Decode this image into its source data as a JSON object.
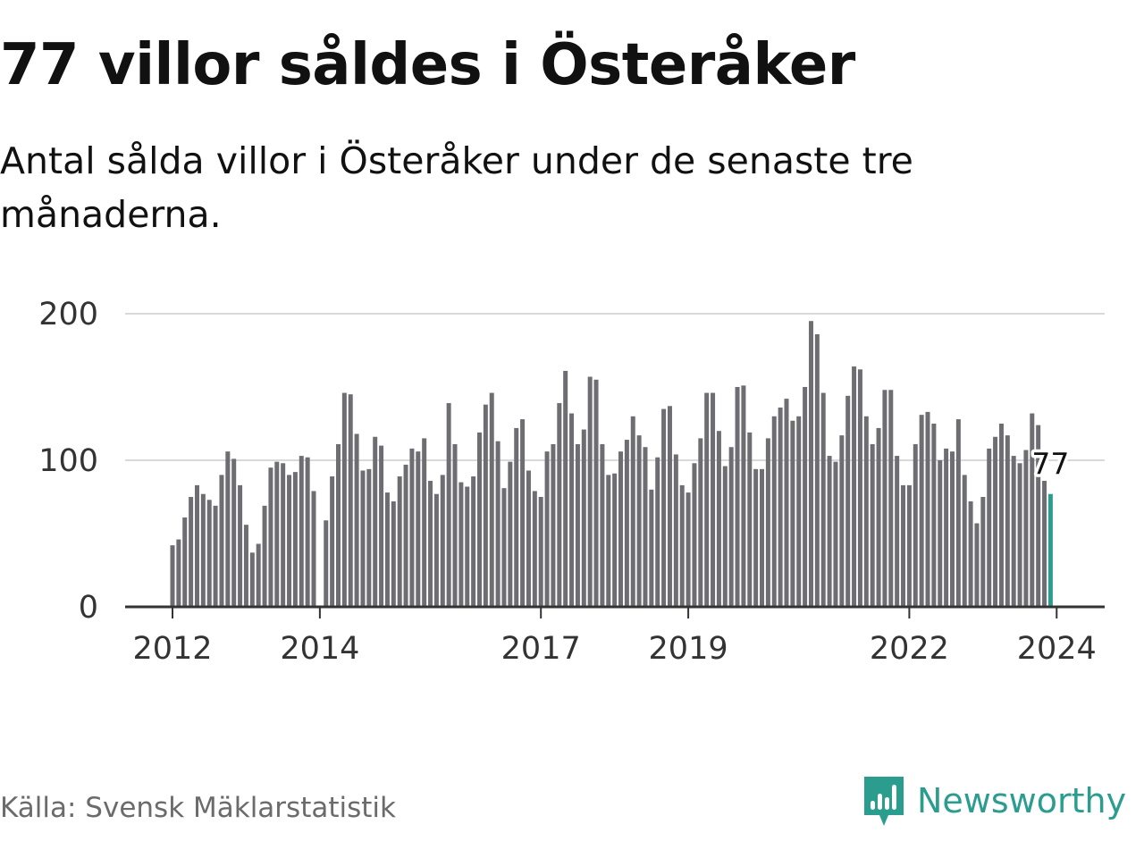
{
  "title": "77 villor såldes i Österåker",
  "subtitle": "Antal sålda villor i Österåker under de senaste tre månaderna.",
  "source": "Källa: Svensk Mäklarstatistik",
  "brand": "Newsworthy",
  "colors": {
    "bar": "#6e6e72",
    "highlight": "#2a9d8f",
    "grid": "#d9d9d9",
    "axis": "#333333",
    "brand": "#2a9d8f"
  },
  "chart_data": {
    "type": "bar",
    "title": "77 villor såldes i Österåker",
    "xlabel": "",
    "ylabel": "",
    "ylim": [
      0,
      200
    ],
    "y_ticks": [
      0,
      100,
      200
    ],
    "grid": true,
    "x_ticks": [
      {
        "label": "2012",
        "index": 0
      },
      {
        "label": "2014",
        "index": 24
      },
      {
        "label": "2017",
        "index": 60
      },
      {
        "label": "2019",
        "index": 84
      },
      {
        "label": "2022",
        "index": 120
      },
      {
        "label": "2024",
        "index": 144
      }
    ],
    "highlight_label": "77",
    "values": [
      42,
      46,
      61,
      75,
      83,
      77,
      73,
      69,
      90,
      106,
      101,
      83,
      56,
      37,
      43,
      69,
      95,
      99,
      98,
      90,
      92,
      103,
      102,
      79,
      null,
      59,
      89,
      111,
      146,
      145,
      118,
      93,
      94,
      116,
      110,
      78,
      72,
      89,
      97,
      108,
      106,
      115,
      86,
      77,
      90,
      139,
      111,
      85,
      82,
      89,
      119,
      138,
      146,
      113,
      81,
      99,
      122,
      128,
      93,
      79,
      75,
      106,
      111,
      139,
      161,
      132,
      111,
      121,
      157,
      155,
      111,
      90,
      91,
      106,
      114,
      130,
      117,
      109,
      80,
      102,
      135,
      137,
      104,
      83,
      78,
      98,
      115,
      146,
      146,
      120,
      96,
      109,
      150,
      151,
      119,
      94,
      94,
      115,
      130,
      136,
      142,
      127,
      130,
      150,
      195,
      186,
      146,
      103,
      99,
      117,
      144,
      164,
      162,
      130,
      111,
      122,
      148,
      148,
      103,
      83,
      83,
      111,
      131,
      133,
      125,
      100,
      108,
      106,
      128,
      90,
      72,
      57,
      75,
      108,
      116,
      125,
      117,
      103,
      98,
      107,
      132,
      124,
      86,
      77
    ],
    "series": [
      {
        "name": "Antal sålda villor (tre månader)",
        "start": "2012-01",
        "frequency": "monthly"
      }
    ]
  }
}
